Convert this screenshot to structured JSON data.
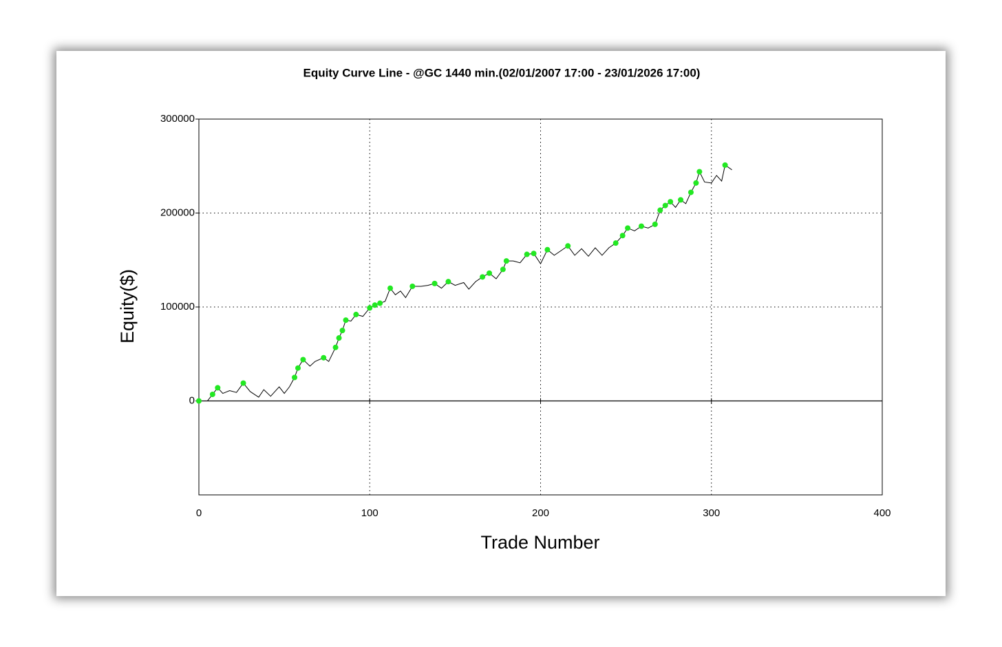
{
  "chart_data": {
    "type": "line",
    "title": "Equity Curve Line - @GC 1440 min.(02/01/2007 17:00 - 23/01/2026 17:00)",
    "x_label": "Trade Number",
    "y_label": "Equity($)",
    "xlim": [
      0,
      400
    ],
    "xticks": [
      0,
      100,
      200,
      300,
      400
    ],
    "ylim": [
      -100000,
      300000
    ],
    "yticks": [
      0,
      100000,
      200000,
      300000
    ],
    "grid": true,
    "series": [
      {
        "type": "line",
        "color": "#000000",
        "x": [
          0,
          5,
          8,
          11,
          14,
          18,
          22,
          26,
          30,
          35,
          38,
          42,
          47,
          50,
          53,
          56,
          58,
          61,
          65,
          68,
          73,
          76,
          80,
          82,
          84,
          86,
          89,
          92,
          96,
          100,
          103,
          106,
          109,
          112,
          115,
          118,
          121,
          125,
          130,
          134,
          138,
          142,
          146,
          150,
          155,
          158,
          162,
          166,
          170,
          174,
          178,
          180,
          184,
          188,
          192,
          196,
          200,
          204,
          208,
          212,
          216,
          220,
          224,
          228,
          232,
          236,
          240,
          244,
          248,
          251,
          255,
          259,
          263,
          267,
          270,
          273,
          276,
          279,
          282,
          285,
          288,
          291,
          293,
          296,
          300,
          303,
          306,
          308,
          312
        ],
        "values": [
          0,
          0,
          7000,
          14000,
          8000,
          11000,
          9000,
          19000,
          10000,
          4000,
          12000,
          5000,
          15000,
          8000,
          15000,
          25000,
          35000,
          44000,
          37000,
          42000,
          46000,
          42000,
          57000,
          67000,
          75000,
          86000,
          85000,
          92000,
          90000,
          99000,
          102000,
          104000,
          106000,
          120000,
          113000,
          117000,
          110000,
          122000,
          122000,
          123000,
          125000,
          120000,
          127000,
          123000,
          126000,
          119000,
          127000,
          132000,
          136000,
          130000,
          140000,
          149000,
          149000,
          147000,
          156000,
          157000,
          146000,
          161000,
          155000,
          160000,
          165000,
          155000,
          162000,
          154000,
          163000,
          155000,
          163000,
          168000,
          176000,
          184000,
          181000,
          186000,
          184000,
          188000,
          203000,
          208000,
          212000,
          206000,
          214000,
          210000,
          222000,
          232000,
          244000,
          233000,
          232000,
          240000,
          234000,
          251000,
          246000
        ]
      },
      {
        "type": "scatter",
        "color": "#22e822",
        "x": [
          0,
          8,
          11,
          26,
          56,
          58,
          61,
          73,
          80,
          82,
          84,
          86,
          92,
          100,
          103,
          106,
          112,
          125,
          138,
          146,
          166,
          170,
          178,
          180,
          192,
          196,
          204,
          216,
          244,
          248,
          251,
          259,
          267,
          270,
          273,
          276,
          282,
          288,
          291,
          293,
          308
        ],
        "values": [
          0,
          7000,
          14000,
          19000,
          25000,
          35000,
          44000,
          46000,
          57000,
          67000,
          75000,
          86000,
          92000,
          99000,
          102000,
          104000,
          120000,
          122000,
          125000,
          127000,
          132000,
          136000,
          140000,
          149000,
          156000,
          157000,
          161000,
          165000,
          168000,
          176000,
          184000,
          186000,
          188000,
          203000,
          208000,
          212000,
          214000,
          222000,
          232000,
          244000,
          251000
        ]
      }
    ]
  }
}
